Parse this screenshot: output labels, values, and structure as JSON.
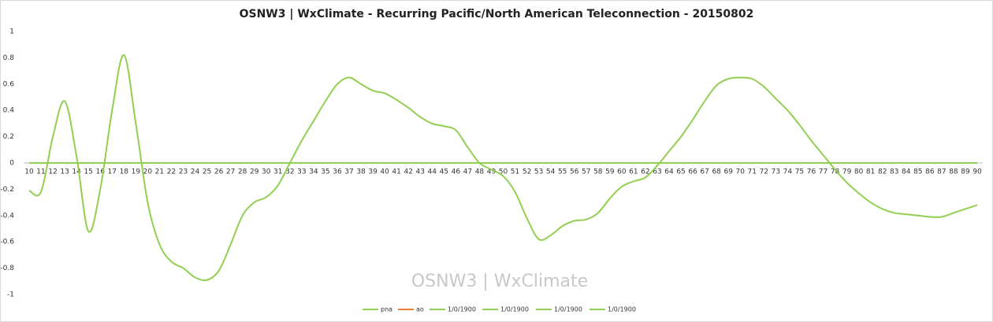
{
  "chart_data": {
    "type": "line",
    "title": "OSNW3 | WxClimate - Recurring Pacific/North American Teleconnection - 20150802",
    "watermark": "OSNW3 | WxClimate",
    "categories": [
      10,
      11,
      12,
      13,
      14,
      15,
      16,
      17,
      18,
      19,
      20,
      21,
      22,
      23,
      24,
      25,
      26,
      27,
      28,
      29,
      30,
      31,
      32,
      33,
      34,
      35,
      36,
      37,
      38,
      39,
      40,
      41,
      42,
      43,
      44,
      45,
      46,
      47,
      48,
      49,
      50,
      51,
      52,
      53,
      54,
      55,
      56,
      57,
      58,
      59,
      60,
      61,
      62,
      63,
      64,
      65,
      66,
      67,
      68,
      69,
      70,
      71,
      72,
      73,
      74,
      75,
      76,
      77,
      78,
      79,
      80,
      81,
      82,
      83,
      84,
      85,
      86,
      87,
      88,
      89,
      90
    ],
    "ylim": [
      -1,
      1
    ],
    "yticks": [
      -1,
      -0.8,
      -0.6,
      -0.4,
      -0.2,
      0,
      0.2,
      0.4,
      0.6,
      0.8,
      1
    ],
    "legend": "bottom",
    "series": [
      {
        "name": "ao",
        "color": "#ed7d31",
        "values": [
          0,
          0,
          0,
          0,
          0,
          0,
          0,
          0,
          0,
          0,
          0,
          0,
          0,
          0,
          0,
          0,
          0,
          0,
          0,
          0,
          0,
          0,
          0,
          0,
          0,
          0,
          0,
          0,
          0,
          0,
          0,
          0,
          0,
          0,
          0,
          0,
          0,
          0,
          0,
          0,
          0,
          0,
          0,
          0,
          0,
          0,
          0,
          0,
          0,
          0,
          0,
          0,
          0,
          0,
          0,
          0,
          0,
          0,
          0,
          0,
          0,
          0,
          0,
          0,
          0,
          0,
          0,
          0,
          0,
          0,
          0,
          0,
          0,
          0,
          0,
          0,
          0,
          0,
          0,
          0,
          0
        ]
      },
      {
        "name": "1/0/1900",
        "color": "#92cf50",
        "values": [
          0,
          0,
          0,
          0,
          0,
          0,
          0,
          0,
          0,
          0,
          0,
          0,
          0,
          0,
          0,
          0,
          0,
          0,
          0,
          0,
          0,
          0,
          0,
          0,
          0,
          0,
          0,
          0,
          0,
          0,
          0,
          0,
          0,
          0,
          0,
          0,
          0,
          0,
          0,
          0,
          0,
          0,
          0,
          0,
          0,
          0,
          0,
          0,
          0,
          0,
          0,
          0,
          0,
          0,
          0,
          0,
          0,
          0,
          0,
          0,
          0,
          0,
          0,
          0,
          0,
          0,
          0,
          0,
          0,
          0,
          0,
          0,
          0,
          0,
          0,
          0,
          0,
          0,
          0,
          0,
          0
        ]
      },
      {
        "name": "1/0/1900",
        "color": "#92cf50",
        "values": [
          0,
          0,
          0,
          0,
          0,
          0,
          0,
          0,
          0,
          0,
          0,
          0,
          0,
          0,
          0,
          0,
          0,
          0,
          0,
          0,
          0,
          0,
          0,
          0,
          0,
          0,
          0,
          0,
          0,
          0,
          0,
          0,
          0,
          0,
          0,
          0,
          0,
          0,
          0,
          0,
          0,
          0,
          0,
          0,
          0,
          0,
          0,
          0,
          0,
          0,
          0,
          0,
          0,
          0,
          0,
          0,
          0,
          0,
          0,
          0,
          0,
          0,
          0,
          0,
          0,
          0,
          0,
          0,
          0,
          0,
          0,
          0,
          0,
          0,
          0,
          0,
          0,
          0,
          0,
          0,
          0
        ]
      },
      {
        "name": "1/0/1900",
        "color": "#92cf50",
        "values": [
          0,
          0,
          0,
          0,
          0,
          0,
          0,
          0,
          0,
          0,
          0,
          0,
          0,
          0,
          0,
          0,
          0,
          0,
          0,
          0,
          0,
          0,
          0,
          0,
          0,
          0,
          0,
          0,
          0,
          0,
          0,
          0,
          0,
          0,
          0,
          0,
          0,
          0,
          0,
          0,
          0,
          0,
          0,
          0,
          0,
          0,
          0,
          0,
          0,
          0,
          0,
          0,
          0,
          0,
          0,
          0,
          0,
          0,
          0,
          0,
          0,
          0,
          0,
          0,
          0,
          0,
          0,
          0,
          0,
          0,
          0,
          0,
          0,
          0,
          0,
          0,
          0,
          0,
          0,
          0,
          0
        ]
      },
      {
        "name": "1/0/1900",
        "color": "#92cf50",
        "values": [
          0,
          0,
          0,
          0,
          0,
          0,
          0,
          0,
          0,
          0,
          0,
          0,
          0,
          0,
          0,
          0,
          0,
          0,
          0,
          0,
          0,
          0,
          0,
          0,
          0,
          0,
          0,
          0,
          0,
          0,
          0,
          0,
          0,
          0,
          0,
          0,
          0,
          0,
          0,
          0,
          0,
          0,
          0,
          0,
          0,
          0,
          0,
          0,
          0,
          0,
          0,
          0,
          0,
          0,
          0,
          0,
          0,
          0,
          0,
          0,
          0,
          0,
          0,
          0,
          0,
          0,
          0,
          0,
          0,
          0,
          0,
          0,
          0,
          0,
          0,
          0,
          0,
          0,
          0,
          0,
          0
        ]
      },
      {
        "name": "pna",
        "color": "#92cf50",
        "values": [
          -0.21,
          -0.22,
          0.2,
          0.47,
          0.05,
          -0.52,
          -0.2,
          0.4,
          0.82,
          0.3,
          -0.3,
          -0.62,
          -0.75,
          -0.8,
          -0.87,
          -0.89,
          -0.82,
          -0.62,
          -0.4,
          -0.3,
          -0.26,
          -0.17,
          0.0,
          0.17,
          0.32,
          0.47,
          0.6,
          0.65,
          0.6,
          0.55,
          0.53,
          0.48,
          0.42,
          0.35,
          0.3,
          0.28,
          0.25,
          0.12,
          0.0,
          -0.05,
          -0.1,
          -0.22,
          -0.42,
          -0.58,
          -0.55,
          -0.48,
          -0.44,
          -0.43,
          -0.38,
          -0.27,
          -0.18,
          -0.14,
          -0.11,
          -0.02,
          0.09,
          0.2,
          0.33,
          0.47,
          0.59,
          0.64,
          0.65,
          0.64,
          0.58,
          0.49,
          0.4,
          0.29,
          0.17,
          0.06,
          -0.05,
          -0.15,
          -0.23,
          -0.3,
          -0.35,
          -0.38,
          -0.39,
          -0.4,
          -0.41,
          -0.41,
          -0.38,
          -0.35,
          -0.32
        ]
      }
    ]
  }
}
